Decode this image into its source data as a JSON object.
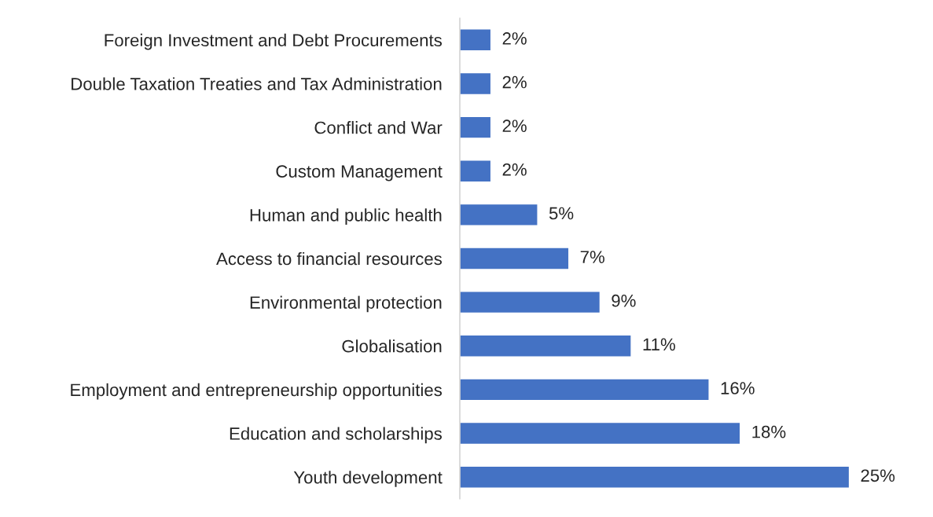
{
  "chart_data": {
    "type": "bar",
    "orientation": "horizontal",
    "categories": [
      "Foreign Investment and Debt Procurements",
      "Double Taxation Treaties and Tax Administration",
      "Conflict and War",
      "Custom Management",
      "Human and public health",
      "Access to financial resources",
      "Environmental protection",
      "Globalisation",
      "Employment and entrepreneurship opportunities",
      "Education and scholarships",
      "Youth development"
    ],
    "values": [
      2,
      2,
      2,
      2,
      5,
      7,
      9,
      11,
      16,
      18,
      25
    ],
    "value_labels": [
      "2%",
      "2%",
      "2%",
      "2%",
      "5%",
      "7%",
      "9%",
      "11%",
      "16%",
      "18%",
      "25%"
    ],
    "color": "#4472c4",
    "grid": false,
    "legend": false
  }
}
